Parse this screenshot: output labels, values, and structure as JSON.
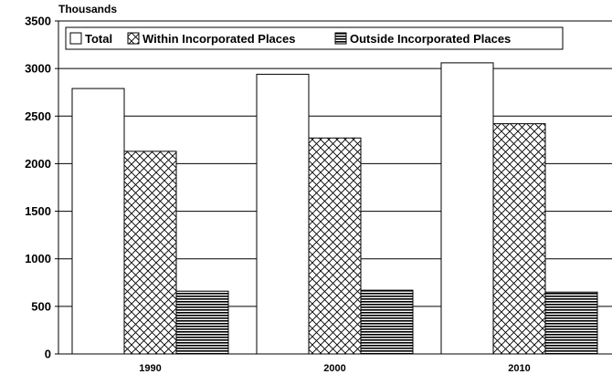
{
  "chart_data": {
    "type": "bar",
    "ylabel": "Thousands",
    "categories": [
      "1990",
      "2000",
      "2010"
    ],
    "ylim": [
      0,
      3500
    ],
    "yticks": [
      0,
      500,
      1000,
      1500,
      2000,
      2500,
      3000,
      3500
    ],
    "grid": true,
    "legend_position": "top-left",
    "series": [
      {
        "name": "Total",
        "values": [
          2790,
          2940,
          3060
        ],
        "fill": "white"
      },
      {
        "name": "Within Incorporated Places",
        "values": [
          2130,
          2270,
          2420
        ],
        "fill": "crosshatch"
      },
      {
        "name": "Outside Incorporated Places",
        "values": [
          660,
          670,
          650
        ],
        "fill": "horizontal-lines"
      }
    ]
  }
}
